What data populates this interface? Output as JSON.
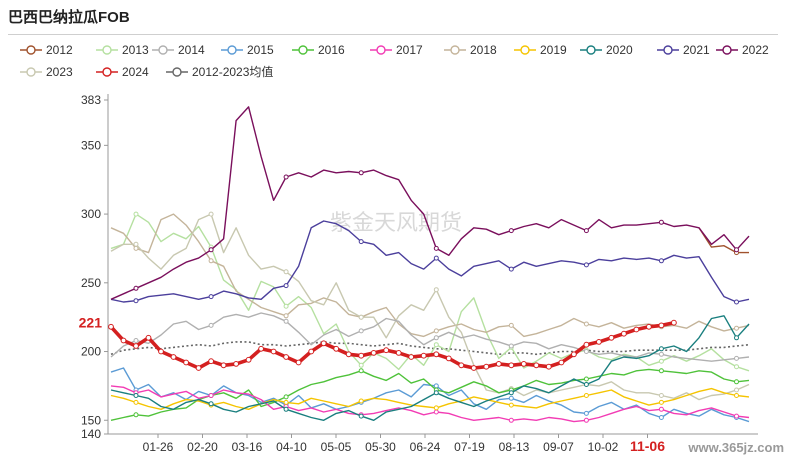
{
  "page": {
    "title": "巴西巴纳拉瓜FOB"
  },
  "watermark": "紫金天风期货",
  "watermark_url": "www.365jz.com",
  "colors": {
    "2012": "#a0522d",
    "2013": "#b5e0a0",
    "2014": "#b0b0b0",
    "2015": "#5b9bd5",
    "2016": "#4fc23a",
    "2017": "#f23cb4",
    "2018": "#c4b49a",
    "2019": "#f5c400",
    "2020": "#1a7f7f",
    "2021": "#4b3f9c",
    "2022": "#7a0f5c",
    "2023": "#c8c8b0",
    "2024": "#d42020",
    "avg": "#666666"
  },
  "chart_data": {
    "type": "line",
    "title": "巴西巴纳拉瓜FOB",
    "ylim": [
      140,
      383
    ],
    "yticks": [
      140,
      150,
      200,
      250,
      300,
      350,
      383
    ],
    "x_tick_labels": [
      "01-26",
      "02-20",
      "03-16",
      "04-10",
      "05-05",
      "05-30",
      "06-24",
      "07-19",
      "08-13",
      "09-07",
      "10-02",
      "11-06"
    ],
    "x_extent_weeks": 52,
    "highlight_tick": "11-06",
    "current_value_label": "221",
    "grid": false,
    "legend_position": "top",
    "series": [
      {
        "name": "2012",
        "key": "2012",
        "values": [
          null,
          null,
          null,
          null,
          null,
          null,
          null,
          null,
          null,
          null,
          null,
          null,
          null,
          null,
          null,
          null,
          null,
          null,
          null,
          null,
          null,
          null,
          null,
          null,
          null,
          null,
          null,
          null,
          null,
          null,
          null,
          null,
          null,
          null,
          null,
          null,
          null,
          null,
          null,
          null,
          null,
          null,
          null,
          null,
          null,
          null,
          null,
          290,
          276,
          277,
          272,
          272
        ]
      },
      {
        "name": "2013",
        "key": "2013",
        "values": [
          275,
          278,
          300,
          294,
          280,
          286,
          282,
          291,
          276,
          252,
          245,
          230,
          251,
          247,
          233,
          240,
          232,
          213,
          220,
          200,
          190,
          199,
          195,
          187,
          198,
          190,
          205,
          200,
          229,
          239,
          214,
          195,
          203,
          188,
          193,
          199,
          195,
          199,
          201,
          196,
          194,
          198,
          196,
          190,
          193,
          197,
          193,
          197,
          202,
          194,
          189,
          186
        ]
      },
      {
        "name": "2014",
        "key": "2014",
        "values": [
          196,
          204,
          208,
          206,
          212,
          220,
          222,
          216,
          219,
          225,
          227,
          225,
          228,
          226,
          222,
          214,
          205,
          212,
          216,
          211,
          215,
          218,
          224,
          222,
          212,
          205,
          210,
          214,
          210,
          212,
          209,
          207,
          204,
          207,
          206,
          202,
          205,
          203,
          200,
          198,
          199,
          197,
          196,
          199,
          198,
          196,
          195,
          194,
          193,
          194,
          195,
          196
        ]
      },
      {
        "name": "2015",
        "key": "2015",
        "values": [
          185,
          188,
          172,
          176,
          167,
          170,
          165,
          171,
          168,
          175,
          170,
          168,
          163,
          166,
          161,
          168,
          159,
          162,
          158,
          160,
          163,
          166,
          170,
          172,
          167,
          176,
          175,
          168,
          172,
          162,
          158,
          165,
          166,
          163,
          168,
          164,
          161,
          156,
          155,
          160,
          163,
          158,
          161,
          155,
          152,
          158,
          155,
          153,
          158,
          154,
          152,
          149
        ]
      },
      {
        "name": "2016",
        "key": "2016",
        "values": [
          150,
          152,
          154,
          153,
          156,
          158,
          159,
          165,
          168,
          170,
          166,
          172,
          160,
          163,
          167,
          172,
          176,
          178,
          181,
          183,
          186,
          182,
          179,
          184,
          177,
          180,
          172,
          170,
          174,
          178,
          175,
          170,
          172,
          175,
          179,
          176,
          177,
          179,
          180,
          182,
          184,
          183,
          186,
          187,
          186,
          185,
          184,
          186,
          185,
          180,
          178,
          179
        ]
      },
      {
        "name": "2017",
        "key": "2017",
        "values": [
          175,
          174,
          170,
          172,
          167,
          169,
          171,
          166,
          168,
          172,
          170,
          169,
          165,
          158,
          160,
          157,
          159,
          156,
          158,
          155,
          154,
          155,
          157,
          159,
          157,
          154,
          156,
          155,
          152,
          150,
          151,
          152,
          150,
          151,
          150,
          152,
          151,
          149,
          150,
          152,
          155,
          158,
          160,
          157,
          158,
          155,
          154,
          157,
          159,
          156,
          153,
          152
        ]
      },
      {
        "name": "2018",
        "key": "2018",
        "values": [
          290,
          286,
          275,
          272,
          296,
          300,
          292,
          280,
          266,
          262,
          244,
          238,
          232,
          229,
          226,
          234,
          235,
          239,
          236,
          227,
          225,
          229,
          232,
          220,
          213,
          211,
          215,
          218,
          220,
          216,
          214,
          218,
          219,
          211,
          213,
          216,
          219,
          224,
          220,
          218,
          221,
          217,
          219,
          220,
          218,
          219,
          217,
          222,
          218,
          215,
          217,
          219
        ]
      },
      {
        "name": "2019",
        "key": "2019",
        "values": [
          168,
          166,
          163,
          160,
          158,
          162,
          165,
          164,
          161,
          163,
          160,
          158,
          162,
          165,
          163,
          162,
          166,
          164,
          162,
          160,
          164,
          166,
          165,
          163,
          161,
          160,
          159,
          162,
          164,
          167,
          165,
          163,
          161,
          160,
          159,
          162,
          164,
          166,
          168,
          170,
          172,
          167,
          164,
          161,
          163,
          165,
          168,
          171,
          173,
          170,
          168,
          167
        ]
      },
      {
        "name": "2020",
        "key": "2020",
        "values": [
          172,
          170,
          168,
          166,
          160,
          158,
          163,
          165,
          162,
          158,
          156,
          160,
          162,
          164,
          158,
          155,
          152,
          150,
          155,
          157,
          153,
          150,
          156,
          158,
          160,
          165,
          170,
          166,
          163,
          160,
          164,
          167,
          170,
          175,
          173,
          170,
          175,
          180,
          176,
          180,
          193,
          196,
          195,
          197,
          202,
          204,
          200,
          210,
          224,
          226,
          210,
          220
        ]
      },
      {
        "name": "2021",
        "key": "2021",
        "values": [
          238,
          236,
          237,
          240,
          241,
          242,
          240,
          238,
          240,
          244,
          242,
          239,
          238,
          246,
          248,
          262,
          290,
          295,
          293,
          288,
          280,
          278,
          270,
          272,
          264,
          260,
          268,
          260,
          255,
          262,
          264,
          266,
          260,
          265,
          262,
          264,
          266,
          265,
          263,
          267,
          266,
          268,
          267,
          268,
          266,
          270,
          268,
          269,
          254,
          240,
          236,
          238
        ]
      },
      {
        "name": "2022",
        "key": "2022",
        "values": [
          238,
          242,
          246,
          250,
          254,
          260,
          265,
          268,
          274,
          282,
          368,
          378,
          342,
          310,
          327,
          330,
          327,
          332,
          330,
          331,
          330,
          332,
          328,
          325,
          310,
          300,
          275,
          270,
          282,
          290,
          289,
          285,
          288,
          291,
          293,
          290,
          296,
          292,
          288,
          296,
          290,
          292,
          292,
          293,
          294,
          291,
          292,
          290,
          278,
          285,
          274,
          284
        ]
      },
      {
        "name": "2023",
        "key": "2023",
        "values": [
          273,
          278,
          278,
          268,
          260,
          270,
          275,
          296,
          300,
          272,
          290,
          270,
          260,
          262,
          258,
          251,
          237,
          234,
          250,
          230,
          225,
          225,
          210,
          226,
          234,
          230,
          245,
          225,
          214,
          190,
          172,
          170,
          173,
          168,
          172,
          170,
          172,
          174,
          176,
          175,
          178,
          172,
          170,
          170,
          168,
          166,
          170,
          165,
          168,
          169,
          172,
          176
        ]
      },
      {
        "name": "2024",
        "key": "2024",
        "values": [
          218,
          208,
          204,
          210,
          200,
          196,
          192,
          188,
          193,
          190,
          191,
          194,
          202,
          200,
          196,
          192,
          200,
          206,
          202,
          198,
          197,
          199,
          201,
          199,
          196,
          197,
          198,
          195,
          190,
          188,
          189,
          191,
          190,
          191,
          190,
          189,
          192,
          198,
          205,
          207,
          210,
          213,
          216,
          218,
          219,
          221,
          null,
          null,
          null,
          null,
          null,
          null
        ]
      },
      {
        "name": "2012-2023均值",
        "key": "avg",
        "dotted": true,
        "values": [
          198,
          201,
          202,
          203,
          202,
          203,
          204,
          205,
          204,
          206,
          207,
          207,
          205,
          205,
          204,
          205,
          206,
          207,
          206,
          206,
          205,
          204,
          205,
          206,
          204,
          203,
          202,
          202,
          201,
          200,
          199,
          198,
          199,
          199,
          198,
          199,
          200,
          200,
          201,
          200,
          200,
          200,
          201,
          201,
          201,
          201,
          201,
          202,
          203,
          203,
          204,
          205
        ]
      }
    ]
  }
}
